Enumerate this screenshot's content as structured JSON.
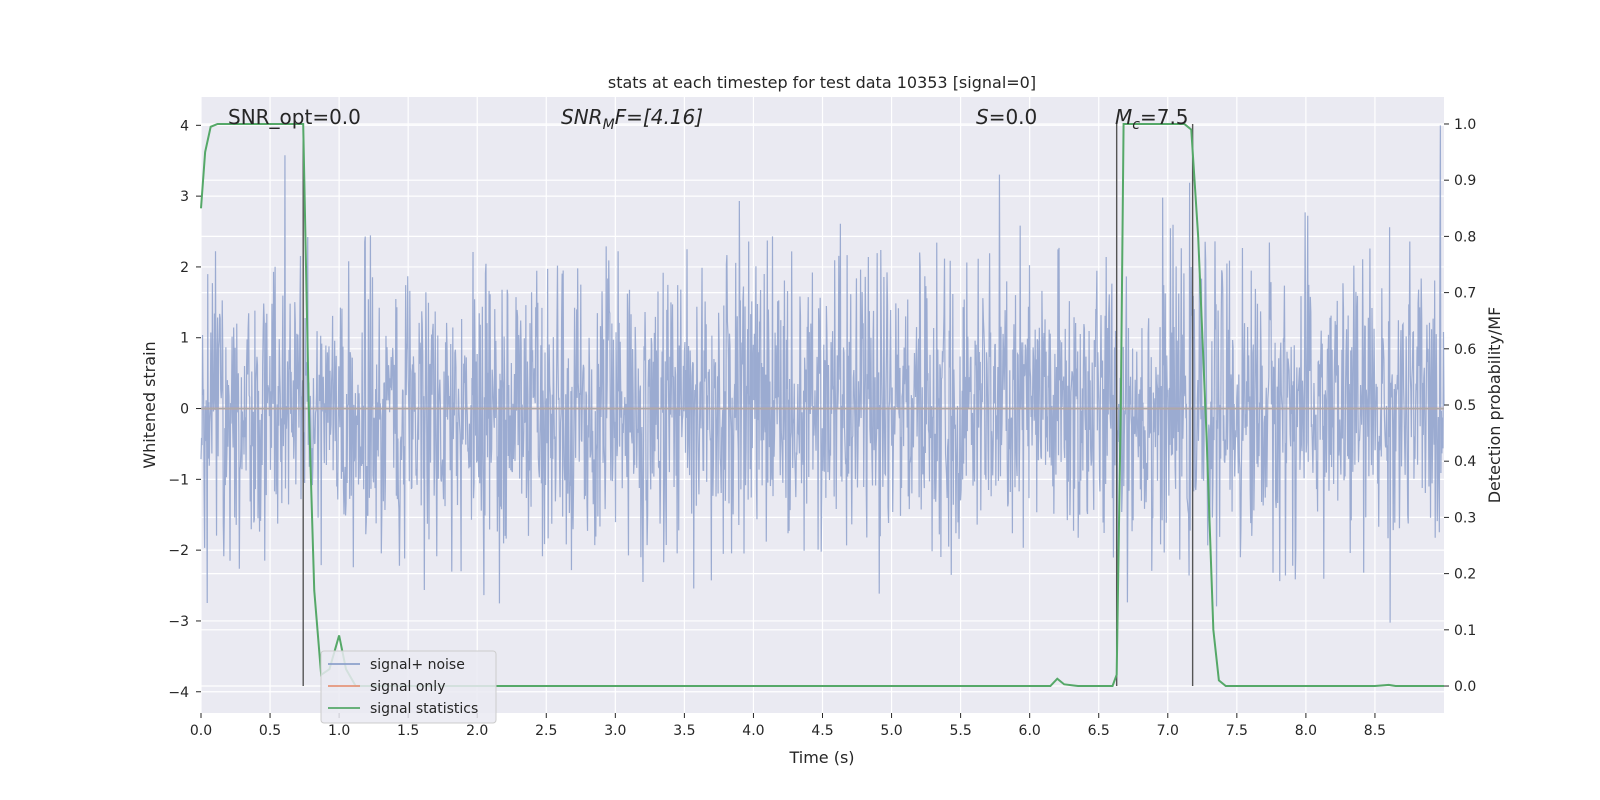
{
  "chart_data": {
    "type": "line",
    "title": "stats at each timestep for test data 10353 [signal=0]",
    "xlabel": "Time (s)",
    "ylabel": "Whitened strain",
    "y2label": "Detection probability/MF",
    "xlim": [
      0.0,
      9.0
    ],
    "ylim": [
      -4.3,
      4.4
    ],
    "y2lim": [
      -0.048,
      1.048
    ],
    "x_ticks": [
      0.0,
      0.5,
      1.0,
      1.5,
      2.0,
      2.5,
      3.0,
      3.5,
      4.0,
      4.5,
      5.0,
      5.5,
      6.0,
      6.5,
      7.0,
      7.5,
      8.0,
      8.5
    ],
    "x_tick_labels": [
      "0.0",
      "0.5",
      "1.0",
      "1.5",
      "2.0",
      "2.5",
      "3.0",
      "3.5",
      "4.0",
      "4.5",
      "5.0",
      "5.5",
      "6.0",
      "6.5",
      "7.0",
      "7.5",
      "8.0",
      "8.5"
    ],
    "y_ticks": [
      -4,
      -3,
      -2,
      -1,
      0,
      1,
      2,
      3,
      4
    ],
    "y_tick_labels": [
      "−4",
      "−3",
      "−2",
      "−1",
      "0",
      "1",
      "2",
      "3",
      "4"
    ],
    "y2_ticks": [
      0.0,
      0.1,
      0.2,
      0.3,
      0.4,
      0.5,
      0.6,
      0.7,
      0.8,
      0.9,
      1.0
    ],
    "y2_tick_labels": [
      "0.0",
      "0.1",
      "0.2",
      "0.3",
      "0.4",
      "0.5",
      "0.6",
      "0.7",
      "0.8",
      "0.9",
      "1.0"
    ],
    "grid": true,
    "legend_placement": "lower-left",
    "annotations": {
      "snr_opt": "SNR_opt=0.0",
      "snr_mf_main": "SNR",
      "snr_mf_sub": "M",
      "snr_mf_rest": "F=[4.16]",
      "s_main": "S",
      "s_rest": "=0.0",
      "mc_main": "M",
      "mc_sub": "c",
      "mc_rest": "=7.5"
    },
    "series": [
      {
        "name": "signal+ noise",
        "color": "#8da0cb",
        "kind": "noise",
        "x_range": [
          0.0,
          9.0
        ],
        "amplitude_std": 1.0,
        "note_values": "dense whitened noise, approx. between -4 and 4"
      },
      {
        "name": "signal only",
        "color": "#e5967a",
        "kind": "line",
        "x": [
          0.0,
          9.0
        ],
        "y": [
          0.0,
          0.0
        ]
      },
      {
        "name": "signal statistics",
        "color": "#55a868",
        "axis": "right",
        "kind": "line",
        "x": [
          0.0,
          0.03,
          0.07,
          0.12,
          0.2,
          0.3,
          0.5,
          0.6,
          0.7,
          0.74,
          0.78,
          0.82,
          0.87,
          0.93,
          1.0,
          1.05,
          1.12,
          1.3,
          2.0,
          3.0,
          4.0,
          5.0,
          6.0,
          6.15,
          6.2,
          6.25,
          6.35,
          6.5,
          6.6,
          6.63,
          6.66,
          6.68,
          6.72,
          6.8,
          7.0,
          7.12,
          7.17,
          7.22,
          7.28,
          7.33,
          7.37,
          7.42,
          7.5,
          8.0,
          8.5,
          8.6,
          8.65,
          9.0
        ],
        "y": [
          0.85,
          0.95,
          0.995,
          1.0,
          1.0,
          1.0,
          1.0,
          1.0,
          1.0,
          1.0,
          0.5,
          0.17,
          0.02,
          0.03,
          0.09,
          0.03,
          0.0,
          0.0,
          0.0,
          0.0,
          0.0,
          0.0,
          0.0,
          0.0,
          0.013,
          0.003,
          0.0,
          0.0,
          0.0,
          0.02,
          0.5,
          1.0,
          1.0,
          1.0,
          1.0,
          1.0,
          0.99,
          0.8,
          0.45,
          0.1,
          0.01,
          0.0,
          0.0,
          0.0,
          0.0,
          0.002,
          0.0,
          0.0
        ]
      }
    ],
    "vertical_markers": [
      0.74,
      6.63,
      7.18
    ]
  }
}
